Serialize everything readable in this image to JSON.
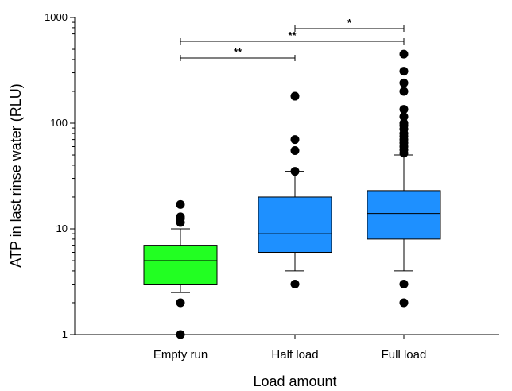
{
  "chart_data": {
    "type": "box",
    "xlabel": "Load amount",
    "ylabel": "ATP in last rinse water (RLU)",
    "yscale": "log",
    "ylim": [
      1,
      1000
    ],
    "yticks": [
      1,
      10,
      100,
      1000
    ],
    "ytick_labels": [
      "1",
      "10",
      "100",
      "1000"
    ],
    "categories": [
      "Empty run",
      "Half load",
      "Full load"
    ],
    "boxes": [
      {
        "category": "Empty run",
        "color": "#22ff22",
        "whisker_low": 2.5,
        "q1": 3,
        "median": 5,
        "q3": 7,
        "whisker_high": 10,
        "outliers": [
          1,
          2,
          11.5,
          12.5,
          13,
          17
        ]
      },
      {
        "category": "Half load",
        "color": "#1e90ff",
        "whisker_low": 4,
        "q1": 6,
        "median": 9,
        "q3": 20,
        "whisker_high": 35,
        "outliers": [
          3,
          35,
          55,
          70,
          180
        ]
      },
      {
        "category": "Full load",
        "color": "#1e90ff",
        "whisker_low": 4,
        "q1": 8,
        "median": 14,
        "q3": 23,
        "whisker_high": 50,
        "outliers": [
          2,
          3,
          52,
          56,
          60,
          65,
          70,
          75,
          80,
          88,
          95,
          100,
          115,
          135,
          200,
          240,
          310,
          450
        ]
      }
    ],
    "significance": [
      {
        "from": "Half load",
        "to": "Full load",
        "label": "*"
      },
      {
        "from": "Empty run",
        "to": "Full load",
        "label": "**"
      },
      {
        "from": "Empty run",
        "to": "Half load",
        "label": "**"
      }
    ]
  }
}
